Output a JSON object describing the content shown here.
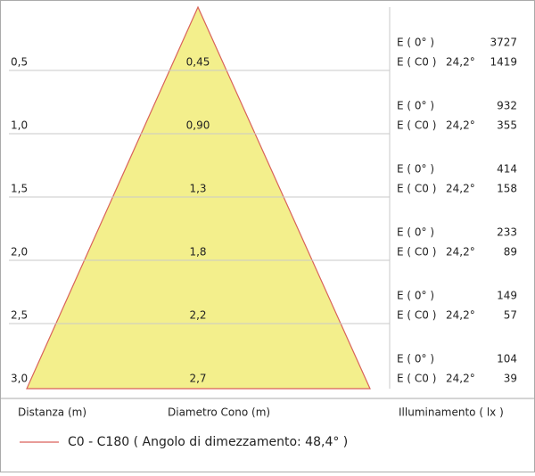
{
  "rows": [
    {
      "distance": "0,5",
      "diameter": "0,45",
      "e0_label": "E ( 0° )",
      "e0_value": "3727",
      "ec0_label": "E ( C0 )",
      "angle": "24,2°",
      "ec0_value": "1419"
    },
    {
      "distance": "1,0",
      "diameter": "0,90",
      "e0_label": "E ( 0° )",
      "e0_value": "932",
      "ec0_label": "E ( C0 )",
      "angle": "24,2°",
      "ec0_value": "355"
    },
    {
      "distance": "1,5",
      "diameter": "1,3",
      "e0_label": "E ( 0° )",
      "e0_value": "414",
      "ec0_label": "E ( C0 )",
      "angle": "24,2°",
      "ec0_value": "158"
    },
    {
      "distance": "2,0",
      "diameter": "1,8",
      "e0_label": "E ( 0° )",
      "e0_value": "233",
      "ec0_label": "E ( C0 )",
      "angle": "24,2°",
      "ec0_value": "89"
    },
    {
      "distance": "2,5",
      "diameter": "2,2",
      "e0_label": "E ( 0° )",
      "e0_value": "149",
      "ec0_label": "E ( C0 )",
      "angle": "24,2°",
      "ec0_value": "57"
    },
    {
      "distance": "3,0",
      "diameter": "2,7",
      "e0_label": "E ( 0° )",
      "e0_value": "104",
      "ec0_label": "E ( C0 )",
      "angle": "24,2°",
      "ec0_value": "39"
    }
  ],
  "footer": {
    "distance": "Distanza (m)",
    "diameter": "Diametro Cono (m)",
    "illuminance": "Illuminamento ( lx )"
  },
  "legend": {
    "label": "C0 - C180  ( Angolo di dimezzamento: 48,4° )"
  }
}
